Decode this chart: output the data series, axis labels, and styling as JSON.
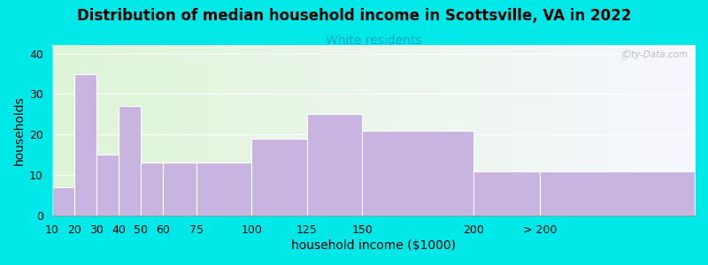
{
  "title": "Distribution of median household income in Scottsville, VA in 2022",
  "subtitle": "White residents",
  "xlabel": "household income ($1000)",
  "ylabel": "households",
  "background_outer": "#00e8e8",
  "bar_color": "#c8b4e0",
  "categories": [
    "10",
    "20",
    "30",
    "40",
    "50",
    "60",
    "75",
    "100",
    "125",
    "150",
    "200",
    "> 200"
  ],
  "left_edges": [
    10,
    20,
    30,
    40,
    50,
    60,
    75,
    100,
    125,
    150,
    200,
    230
  ],
  "widths": [
    10,
    10,
    10,
    10,
    10,
    15,
    25,
    25,
    25,
    50,
    30,
    70
  ],
  "values": [
    7,
    35,
    15,
    27,
    13,
    13,
    13,
    19,
    25,
    21,
    11,
    11
  ],
  "ylim": [
    0,
    42
  ],
  "yticks": [
    0,
    10,
    20,
    30,
    40
  ],
  "title_fontsize": 12,
  "subtitle_fontsize": 10,
  "subtitle_color": "#00aacc",
  "axis_label_fontsize": 10,
  "tick_fontsize": 9,
  "tick_positions": [
    10,
    20,
    30,
    40,
    50,
    60,
    75,
    100,
    125,
    150,
    200,
    230
  ],
  "tick_labels": [
    "10",
    "20",
    "30",
    "40",
    "50",
    "60",
    "75",
    "100",
    "125",
    "150",
    "200",
    "> 200"
  ],
  "xlim": [
    10,
    300
  ],
  "watermark": "City-Data.com"
}
